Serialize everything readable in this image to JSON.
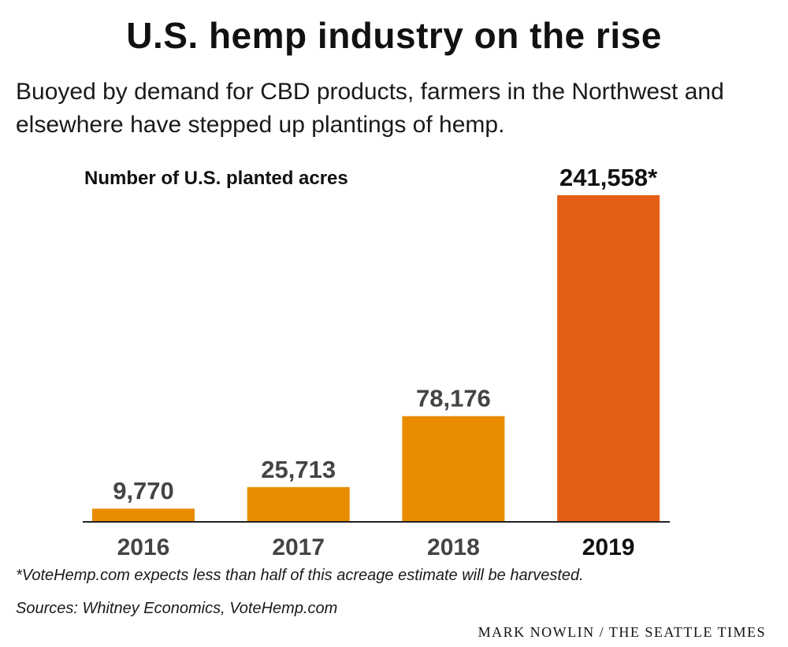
{
  "header": {
    "title": "U.S. hemp industry on the rise",
    "subtitle": "Buoyed by demand for CBD products, farmers in the Northwest and elsewhere have stepped up plantings of hemp."
  },
  "chart_data": {
    "type": "bar",
    "ylabel": "Number of U.S. planted acres",
    "categories": [
      "2016",
      "2017",
      "2018",
      "2019"
    ],
    "values": [
      9770,
      25713,
      78176,
      241558
    ],
    "value_labels": [
      "9,770",
      "25,713",
      "78,176",
      "241,558*"
    ],
    "highlight_index": 3,
    "ylim": [
      0,
      241558
    ],
    "grid": false,
    "colors": {
      "bar": "#ea8c00",
      "highlight": "#e55e15",
      "axis": "#222222",
      "label": "#444444",
      "highlight_label": "#111111"
    }
  },
  "footer": {
    "footnote": "*VoteHemp.com expects less than half of this acreage estimate will be harvested.",
    "sources": "Sources: Whitney Economics, VoteHemp.com",
    "credit": "MARK NOWLIN / THE SEATTLE TIMES"
  }
}
